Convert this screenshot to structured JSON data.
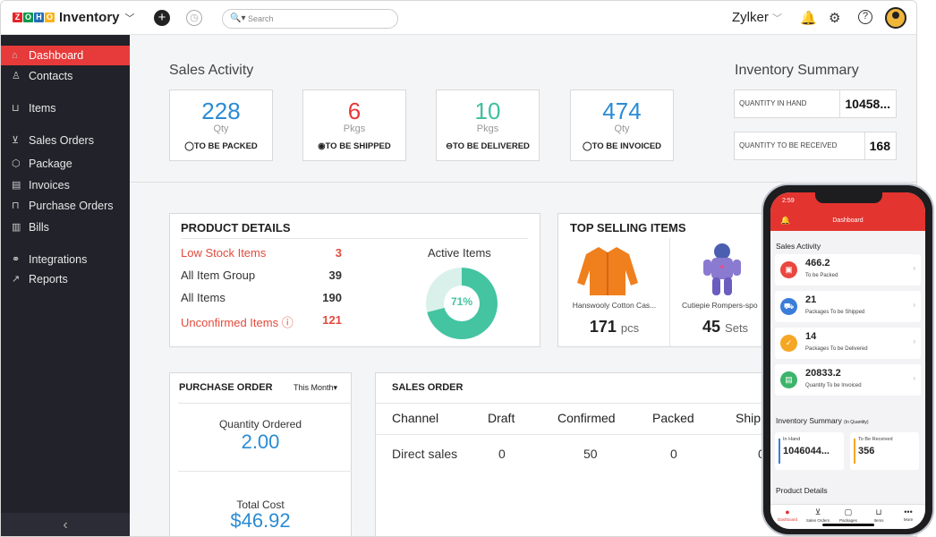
{
  "app": {
    "brand_letters": [
      "Z",
      "O",
      "H",
      "O"
    ],
    "brand_colors": [
      "#e42527",
      "#089949",
      "#226db4",
      "#f9b21d"
    ],
    "name": "Inventory",
    "org": "Zylker"
  },
  "search": {
    "placeholder": "Search"
  },
  "sidebar": {
    "items": [
      {
        "label": "Dashboard",
        "icon": "home-icon",
        "glyph": "⌂",
        "active": true
      },
      {
        "label": "Contacts",
        "icon": "user-icon",
        "glyph": "👤"
      },
      {
        "label": "Items",
        "icon": "basket-icon",
        "glyph": "🧺"
      },
      {
        "label": "Sales Orders",
        "icon": "cart-icon",
        "glyph": "🛒"
      },
      {
        "label": "Package",
        "icon": "box-icon",
        "glyph": "⬡"
      },
      {
        "label": "Invoices",
        "icon": "invoice-icon",
        "glyph": "▤"
      },
      {
        "label": "Purchase Orders",
        "icon": "bag-icon",
        "glyph": "🛍"
      },
      {
        "label": "Bills",
        "icon": "bill-icon",
        "glyph": "▥"
      },
      {
        "label": "Integrations",
        "icon": "integrations-icon",
        "glyph": "⚭"
      },
      {
        "label": "Reports",
        "icon": "reports-icon",
        "glyph": "↗"
      }
    ]
  },
  "sales_activity": {
    "title": "Sales Activity",
    "cards": [
      {
        "value": "228",
        "unit": "Qty",
        "label": "TO BE PACKED",
        "color": "#2a8bd4"
      },
      {
        "value": "6",
        "unit": "Pkgs",
        "label": "TO BE SHIPPED",
        "color": "#e73a3a"
      },
      {
        "value": "10",
        "unit": "Pkgs",
        "label": "TO BE DELIVERED",
        "color": "#3fbf9f"
      },
      {
        "value": "474",
        "unit": "Qty",
        "label": "TO BE INVOICED",
        "color": "#2a8bd4"
      }
    ]
  },
  "inventory_summary": {
    "title": "Inventory Summary",
    "rows": [
      {
        "label": "QUANTITY IN HAND",
        "value": "10458..."
      },
      {
        "label": "QUANTITY TO BE RECEIVED",
        "value": "168"
      }
    ]
  },
  "product_details": {
    "title": "PRODUCT DETAILS",
    "rows": [
      {
        "label": "Low Stock Items",
        "value": "3",
        "alert": true
      },
      {
        "label": "All Item Group",
        "value": "39"
      },
      {
        "label": "All Items",
        "value": "190"
      },
      {
        "label": "Unconfirmed Items ⓘ",
        "value": "121",
        "alert": true
      }
    ],
    "active_items_label": "Active Items",
    "active_pct": "71%",
    "active_fraction": 0.71
  },
  "top_selling": {
    "title": "TOP SELLING ITEMS",
    "items": [
      {
        "name": "Hanswooly Cotton Cas...",
        "qty": "171",
        "unit": "pcs"
      },
      {
        "name": "Cutiepie Rompers-spo",
        "qty": "45",
        "unit": "Sets"
      }
    ]
  },
  "purchase_order": {
    "title": "PURCHASE ORDER",
    "period": "This Month",
    "qty_label": "Quantity Ordered",
    "qty_value": "2.00",
    "cost_label": "Total Cost",
    "cost_value": "$46.92"
  },
  "sales_order": {
    "title": "SALES ORDER",
    "columns": [
      "Channel",
      "Draft",
      "Confirmed",
      "Packed",
      "Ship"
    ],
    "rows": [
      [
        "Direct sales",
        "0",
        "50",
        "0",
        "0"
      ]
    ]
  },
  "phone": {
    "time": "2:59",
    "title": "Dashboard",
    "sales_activity": "Sales Activity",
    "cards": [
      {
        "value": "466.2",
        "label": "To be Packed",
        "color": "#e9473f",
        "glyph": "▣"
      },
      {
        "value": "21",
        "label": "Packages To be Shipped",
        "color": "#3b7dd8",
        "glyph": "⛟"
      },
      {
        "value": "14",
        "label": "Packages To be Delivered",
        "color": "#f5a623",
        "glyph": "✓"
      },
      {
        "value": "20833.2",
        "label": "Quantity To be Invoiced",
        "color": "#3cb46a",
        "glyph": "▤"
      }
    ],
    "inventory_summary": "Inventory Summary",
    "inventory_qualifier": "(In Quantity)",
    "in_hand_label": "In Hand",
    "in_hand_value": "1046044...",
    "to_receive_label": "To Be Received",
    "to_receive_value": "356",
    "product_details": "Product Details",
    "nav": [
      "Dashboard",
      "Sales Orders",
      "Packages",
      "Items",
      "More"
    ]
  }
}
